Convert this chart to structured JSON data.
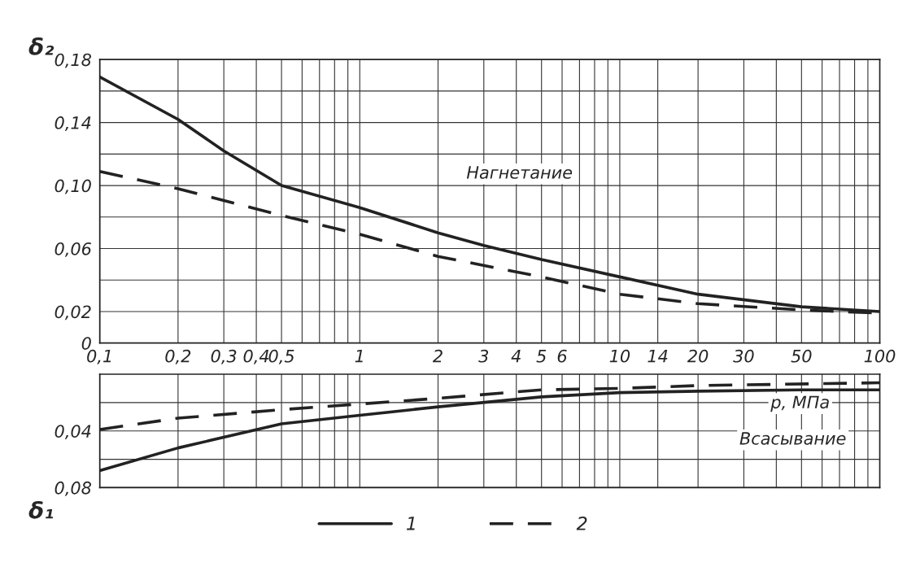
{
  "chart_data": [
    {
      "type": "line",
      "ylabel": "δ₂",
      "log": "x",
      "xlim": [
        0.1,
        100
      ],
      "ylim": [
        0,
        0.18
      ],
      "xticks": [
        0.1,
        0.2,
        0.3,
        0.4,
        0.5,
        0.6,
        0.7,
        0.8,
        0.9,
        1,
        2,
        3,
        4,
        5,
        6,
        7,
        8,
        9,
        10,
        14,
        20,
        30,
        40,
        50,
        60,
        70,
        80,
        90,
        100
      ],
      "yticks": [
        {
          "value": 0,
          "label": "0"
        },
        {
          "value": 0.02,
          "label": "0,02"
        },
        {
          "value": 0.04,
          "label": null
        },
        {
          "value": 0.06,
          "label": "0,06"
        },
        {
          "value": 0.08,
          "label": null
        },
        {
          "value": 0.1,
          "label": "0,10"
        },
        {
          "value": 0.12,
          "label": null
        },
        {
          "value": 0.14,
          "label": "0,14"
        },
        {
          "value": 0.16,
          "label": null
        },
        {
          "value": 0.18,
          "label": "0,18"
        }
      ],
      "tick_labels": "y",
      "grid": true,
      "legend": "bottom",
      "annotations": [
        "Нагнетание"
      ],
      "series": [
        {
          "name": "1",
          "color": "#222222",
          "line_style": "solid",
          "x": [
            0.1,
            0.2,
            0.3,
            0.5,
            1,
            2,
            3,
            5,
            10,
            20,
            50,
            100
          ],
          "values": [
            0.169,
            0.142,
            0.122,
            0.1,
            0.086,
            0.07,
            0.062,
            0.053,
            0.042,
            0.031,
            0.023,
            0.02
          ]
        },
        {
          "name": "2",
          "color": "#222222",
          "line_style": "dashed",
          "x": [
            0.1,
            0.2,
            0.5,
            1,
            2,
            5,
            10,
            20,
            50,
            100
          ],
          "values": [
            0.109,
            0.098,
            0.081,
            0.069,
            0.055,
            0.042,
            0.031,
            0.025,
            0.021,
            0.019
          ]
        }
      ]
    },
    {
      "type": "line",
      "ylabel": "δ₁",
      "xlabel": "p, МПа",
      "log": "x",
      "xlim": [
        0.1,
        100
      ],
      "ylim": [
        0.08,
        0
      ],
      "xticks": [
        {
          "value": 0.1,
          "label": "0,1"
        },
        {
          "value": 0.2,
          "label": "0,2"
        },
        {
          "value": 0.3,
          "label": "0,3"
        },
        {
          "value": 0.4,
          "label": "0,4"
        },
        {
          "value": 0.5,
          "label": "0,5"
        },
        {
          "value": 0.6,
          "label": null
        },
        {
          "value": 0.7,
          "label": null
        },
        {
          "value": 0.8,
          "label": null
        },
        {
          "value": 0.9,
          "label": null
        },
        1,
        2,
        3,
        4,
        5,
        6,
        {
          "value": 7,
          "label": null
        },
        {
          "value": 8,
          "label": null
        },
        {
          "value": 9,
          "label": null
        },
        10,
        14,
        20,
        30,
        {
          "value": 40,
          "label": null
        },
        50,
        {
          "value": 60,
          "label": null
        },
        {
          "value": 70,
          "label": null
        },
        {
          "value": 80,
          "label": null
        },
        {
          "value": 90,
          "label": null
        },
        100
      ],
      "yticks": [
        {
          "value": 0.02,
          "label": null
        },
        {
          "value": 0.04,
          "label": "0,04"
        },
        {
          "value": 0.06,
          "label": null
        },
        {
          "value": 0.08,
          "label": "0,08"
        }
      ],
      "grid": true,
      "annotations": [
        "Всасывание"
      ],
      "series": [
        {
          "name": "1",
          "color": "#222222",
          "line_style": "solid",
          "x": [
            0.1,
            0.2,
            0.5,
            1,
            2,
            5,
            10,
            20,
            50,
            100
          ],
          "values": [
            0.068,
            0.052,
            0.035,
            0.029,
            0.023,
            0.016,
            0.013,
            0.012,
            0.011,
            0.011
          ]
        },
        {
          "name": "2",
          "color": "#222222",
          "line_style": "dashed",
          "x": [
            0.1,
            0.2,
            0.5,
            1,
            2,
            5,
            10,
            20,
            100
          ],
          "values": [
            0.039,
            0.031,
            0.025,
            0.021,
            0.017,
            0.011,
            0.01,
            0.008,
            0.006
          ]
        }
      ]
    }
  ]
}
